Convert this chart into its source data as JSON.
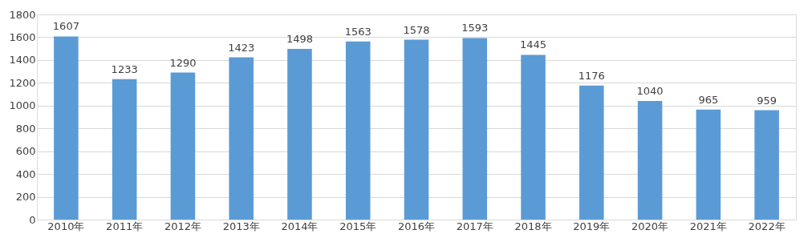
{
  "chart_data": {
    "type": "bar",
    "categories": [
      "2010年",
      "2011年",
      "2012年",
      "2013年",
      "2014年",
      "2015年",
      "2016年",
      "2017年",
      "2018年",
      "2019年",
      "2020年",
      "2021年",
      "2022年"
    ],
    "values": [
      1607,
      1233,
      1290,
      1423,
      1498,
      1563,
      1578,
      1593,
      1445,
      1176,
      1040,
      965,
      959
    ],
    "color": "#5b9bd5",
    "ylim": [
      0,
      1800
    ],
    "yticks": [
      0,
      200,
      400,
      600,
      800,
      1000,
      1200,
      1400,
      1600,
      1800
    ],
    "grid": "y",
    "data_labels": true
  }
}
